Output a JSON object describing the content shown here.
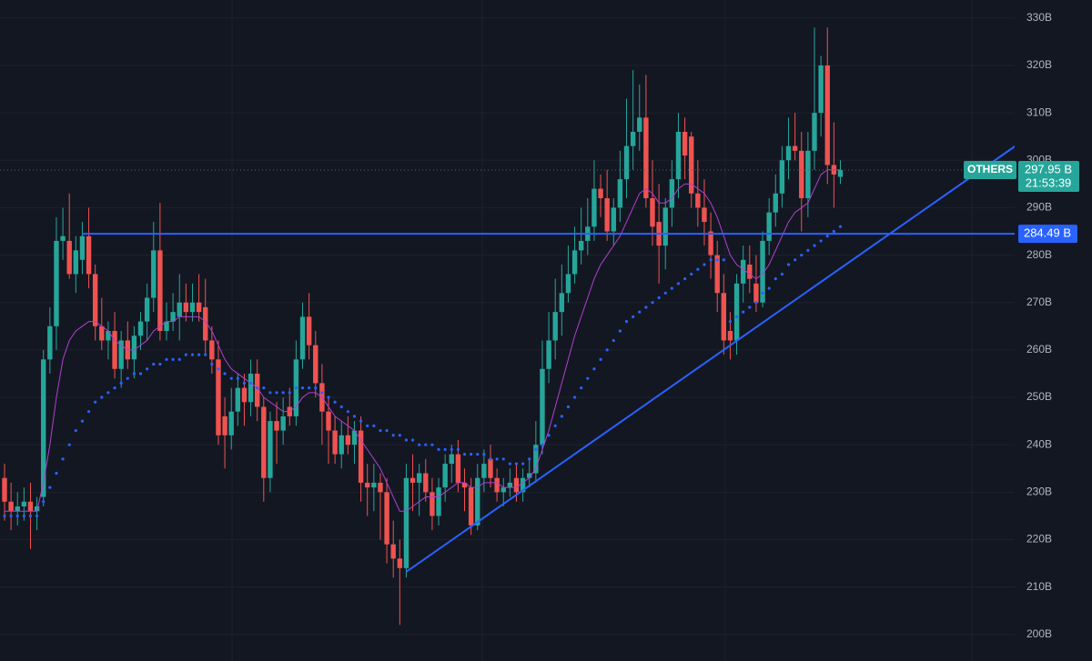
{
  "chart_data": {
    "type": "candlestick",
    "symbol": "OTHERS",
    "last_price": {
      "value": 297.95,
      "label": "297.95 B"
    },
    "countdown": "21:53:39",
    "up_color": "#26a69a",
    "down_color": "#ef5350",
    "candles": [
      [
        233,
        236,
        224,
        228
      ],
      [
        228,
        232,
        222,
        226
      ],
      [
        226,
        230,
        223,
        227
      ],
      [
        227,
        231,
        224,
        228
      ],
      [
        228,
        232,
        218,
        226
      ],
      [
        226,
        229,
        222,
        227
      ],
      [
        229,
        260,
        227,
        258
      ],
      [
        258,
        269,
        255,
        265
      ],
      [
        265,
        288,
        260,
        283
      ],
      [
        283,
        290,
        279,
        284
      ],
      [
        283,
        293,
        275,
        276
      ],
      [
        276,
        284,
        272,
        281
      ],
      [
        279,
        287,
        276,
        284
      ],
      [
        284,
        290,
        273,
        276
      ],
      [
        276,
        278,
        262,
        265
      ],
      [
        265,
        271,
        260,
        262
      ],
      [
        262,
        266,
        258,
        264
      ],
      [
        264,
        268,
        254,
        256
      ],
      [
        256,
        264,
        252,
        262
      ],
      [
        262,
        266,
        256,
        258
      ],
      [
        258,
        265,
        254,
        263
      ],
      [
        263,
        268,
        260,
        266
      ],
      [
        266,
        274,
        262,
        271
      ],
      [
        271,
        287,
        268,
        281
      ],
      [
        281,
        291,
        262,
        264
      ],
      [
        264,
        270,
        262,
        266
      ],
      [
        266,
        272,
        264,
        268
      ],
      [
        267,
        276,
        262,
        270
      ],
      [
        270,
        274,
        266,
        268
      ],
      [
        268,
        274,
        266,
        270
      ],
      [
        270,
        276,
        266,
        268
      ],
      [
        269,
        275,
        259,
        262
      ],
      [
        262,
        265,
        255,
        258
      ],
      [
        258,
        262,
        240,
        242
      ],
      [
        246,
        250,
        235,
        242
      ],
      [
        242,
        252,
        239,
        247
      ],
      [
        247,
        255,
        244,
        252
      ],
      [
        252,
        255,
        244,
        249
      ],
      [
        249,
        258,
        246,
        255
      ],
      [
        255,
        258,
        245,
        248
      ],
      [
        248,
        250,
        228,
        233
      ],
      [
        233,
        247,
        230,
        245
      ],
      [
        245,
        249,
        236,
        243
      ],
      [
        243,
        250,
        240,
        246
      ],
      [
        248,
        252,
        244,
        246
      ],
      [
        246,
        262,
        244,
        258
      ],
      [
        258,
        270,
        256,
        267
      ],
      [
        267,
        272,
        258,
        261
      ],
      [
        261,
        264,
        250,
        253
      ],
      [
        253,
        257,
        240,
        247
      ],
      [
        247,
        250,
        236,
        243
      ],
      [
        243,
        246,
        236,
        238
      ],
      [
        238,
        245,
        235,
        242
      ],
      [
        242,
        246,
        238,
        240
      ],
      [
        240,
        245,
        236,
        243
      ],
      [
        243,
        246,
        228,
        232
      ],
      [
        232,
        236,
        225,
        231
      ],
      [
        231,
        236,
        226,
        232
      ],
      [
        232,
        234,
        220,
        230
      ],
      [
        230,
        233,
        215,
        219
      ],
      [
        219,
        224,
        212,
        216
      ],
      [
        216,
        220,
        202,
        214
      ],
      [
        214,
        236,
        212,
        233
      ],
      [
        233,
        238,
        226,
        232
      ],
      [
        232,
        236,
        225,
        234
      ],
      [
        234,
        237,
        228,
        230
      ],
      [
        230,
        233,
        222,
        225
      ],
      [
        225,
        233,
        223,
        231
      ],
      [
        231,
        238,
        228,
        236
      ],
      [
        236,
        240,
        232,
        238
      ],
      [
        238,
        241,
        230,
        232
      ],
      [
        232,
        235,
        226,
        231
      ],
      [
        231,
        233,
        221,
        223
      ],
      [
        223,
        236,
        222,
        233
      ],
      [
        233,
        239,
        230,
        236
      ],
      [
        237,
        240,
        231,
        233
      ],
      [
        233,
        235,
        228,
        230
      ],
      [
        230,
        233,
        227,
        231
      ],
      [
        231,
        235,
        229,
        232
      ],
      [
        233,
        236,
        228,
        230
      ],
      [
        230,
        235,
        228,
        233
      ],
      [
        233,
        237,
        231,
        234
      ],
      [
        234,
        245,
        232,
        240
      ],
      [
        240,
        262,
        238,
        256
      ],
      [
        256,
        268,
        253,
        262
      ],
      [
        262,
        275,
        258,
        268
      ],
      [
        268,
        278,
        263,
        272
      ],
      [
        272,
        282,
        270,
        276
      ],
      [
        276,
        286,
        274,
        281
      ],
      [
        281,
        290,
        278,
        283
      ],
      [
        283,
        292,
        280,
        286
      ],
      [
        286,
        300,
        283,
        294
      ],
      [
        294,
        297,
        288,
        292
      ],
      [
        292,
        298,
        283,
        285
      ],
      [
        285,
        292,
        282,
        290
      ],
      [
        290,
        302,
        287,
        296
      ],
      [
        296,
        313,
        292,
        303
      ],
      [
        303,
        319,
        298,
        306
      ],
      [
        306,
        316,
        302,
        309
      ],
      [
        309,
        318,
        290,
        292
      ],
      [
        292,
        300,
        282,
        286
      ],
      [
        287,
        295,
        274,
        282
      ],
      [
        282,
        292,
        277,
        290
      ],
      [
        290,
        300,
        286,
        296
      ],
      [
        296,
        310,
        292,
        306
      ],
      [
        306,
        309,
        296,
        301
      ],
      [
        305,
        306,
        290,
        293
      ],
      [
        293,
        300,
        286,
        290
      ],
      [
        290,
        296,
        282,
        287
      ],
      [
        285,
        289,
        275,
        280
      ],
      [
        280,
        283,
        268,
        272
      ],
      [
        272,
        276,
        259,
        262
      ],
      [
        264,
        268,
        258,
        262
      ],
      [
        262,
        276,
        259,
        274
      ],
      [
        274,
        282,
        270,
        279
      ],
      [
        278,
        282,
        272,
        275
      ],
      [
        274,
        280,
        268,
        270
      ],
      [
        270,
        285,
        269,
        283
      ],
      [
        283,
        292,
        280,
        289
      ],
      [
        289,
        297,
        286,
        293
      ],
      [
        293,
        303,
        290,
        300
      ],
      [
        300,
        309,
        296,
        303
      ],
      [
        303,
        310,
        300,
        302
      ],
      [
        302,
        306,
        285,
        292
      ],
      [
        292,
        306,
        288,
        302
      ],
      [
        302,
        328,
        298,
        310
      ],
      [
        310,
        322,
        305,
        320
      ],
      [
        320,
        328,
        295,
        299
      ],
      [
        299,
        308,
        290,
        297
      ],
      [
        296.5,
        300,
        295,
        297.95
      ]
    ],
    "ma": {
      "color": "#b23fd1",
      "values": [
        226,
        226,
        226,
        226,
        226,
        226,
        232,
        240,
        250,
        258,
        262,
        264,
        265,
        266,
        266,
        265,
        264,
        262,
        261,
        260,
        260,
        261,
        262,
        264,
        265,
        266,
        266,
        267,
        267,
        267,
        267,
        266,
        264,
        261,
        258,
        256,
        255,
        254,
        253,
        252,
        250,
        249,
        248,
        247,
        247,
        248,
        250,
        251,
        251,
        250,
        248,
        246,
        245,
        244,
        243,
        241,
        239,
        237,
        235,
        232,
        229,
        226,
        226,
        227,
        228,
        229,
        229,
        229,
        230,
        231,
        232,
        232,
        231,
        231,
        232,
        232,
        232,
        231,
        231,
        231,
        232,
        233,
        235,
        239,
        243,
        248,
        253,
        258,
        263,
        267,
        271,
        275,
        278,
        280,
        282,
        284,
        287,
        290,
        293,
        294,
        293,
        291,
        291,
        292,
        294,
        295,
        295,
        294,
        293,
        291,
        288,
        284,
        280,
        278,
        277,
        276,
        275,
        276,
        278,
        281,
        284,
        287,
        289,
        290,
        291,
        294,
        297,
        298,
        298,
        298
      ]
    },
    "sar": {
      "color": "#2962ff",
      "values": [
        225,
        225,
        225,
        225,
        225,
        225,
        228,
        231,
        234,
        237,
        240,
        243,
        245,
        247,
        249,
        250,
        251,
        252,
        253,
        254,
        255,
        255,
        256,
        257,
        257,
        258,
        258,
        258,
        259,
        259,
        259,
        259,
        257,
        256,
        255,
        254,
        254,
        253,
        253,
        252,
        252,
        251,
        251,
        251,
        251,
        252,
        252,
        252,
        252,
        251,
        250,
        249,
        248,
        247,
        246,
        245,
        244,
        244,
        243,
        243,
        242,
        242,
        241,
        241,
        240,
        240,
        240,
        239,
        239,
        239,
        239,
        238,
        238,
        238,
        238,
        237,
        237,
        237,
        236,
        236,
        236,
        237,
        239,
        240,
        242,
        244,
        246,
        248,
        250,
        252,
        254,
        256,
        258,
        260,
        262,
        264,
        266,
        267,
        268,
        269,
        270,
        271,
        272,
        273,
        274,
        275,
        276,
        277,
        278,
        279,
        279,
        279,
        266,
        267,
        268,
        269,
        270,
        272,
        273,
        275,
        276,
        278,
        279,
        280,
        281,
        282,
        283,
        284,
        285,
        286
      ]
    },
    "hline": {
      "value": 284.49,
      "label": "284.49 B",
      "color": "#2962ff"
    },
    "trendline": {
      "color": "#2962ff",
      "points": [
        [
          62,
          213.2
        ],
        [
          156,
          303
        ]
      ]
    },
    "ylim": [
      194.4,
      333.8
    ],
    "yticks": [
      {
        "value": 200,
        "label": "200B"
      },
      {
        "value": 210,
        "label": "210B"
      },
      {
        "value": 220,
        "label": "220B"
      },
      {
        "value": 230,
        "label": "230B"
      },
      {
        "value": 240,
        "label": "240B"
      },
      {
        "value": 250,
        "label": "250B"
      },
      {
        "value": 260,
        "label": "260B"
      },
      {
        "value": 270,
        "label": "270B"
      },
      {
        "value": 280,
        "label": "280B"
      },
      {
        "value": 290,
        "label": "290B"
      },
      {
        "value": 300,
        "label": "300B"
      },
      {
        "value": 310,
        "label": "310B"
      },
      {
        "value": 320,
        "label": "320B"
      },
      {
        "value": 330,
        "label": "330B"
      }
    ],
    "grid": true
  }
}
